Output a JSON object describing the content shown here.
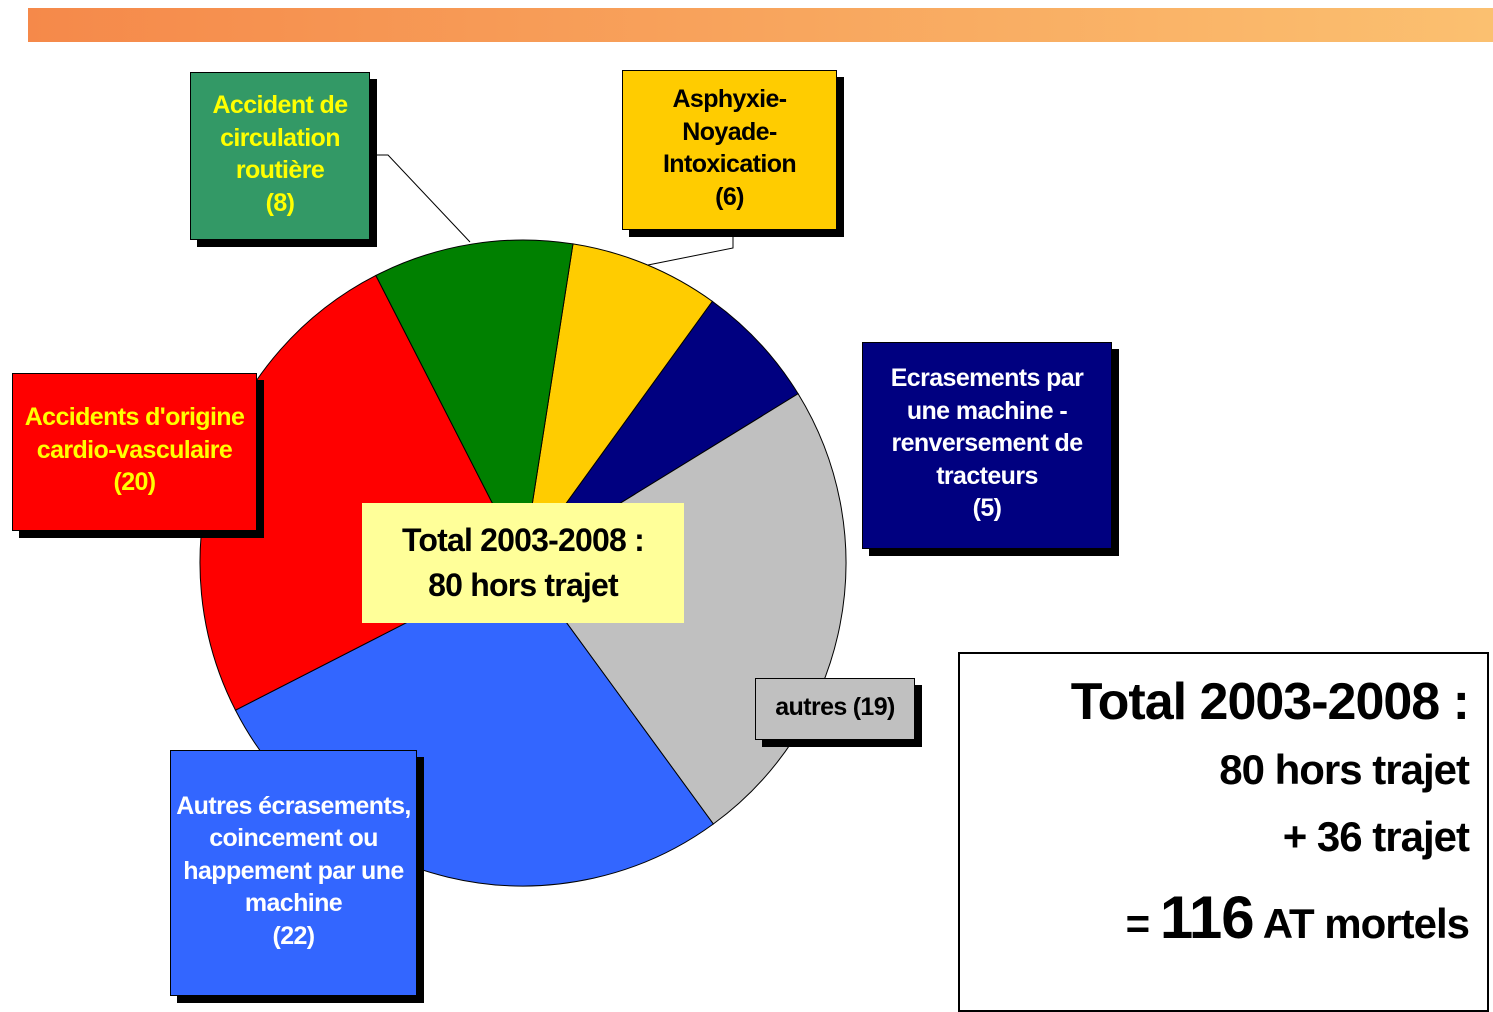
{
  "chart_data": {
    "type": "pie",
    "categories": [
      "Asphyxie-Noyade-Intoxication",
      "Ecrasements par une machine - renversement de tracteurs",
      "autres",
      "Autres écrasements, coincement ou happement par une machine",
      "Accidents d'origine cardio-vasculaire",
      "Accident de circulation routière"
    ],
    "values": [
      6,
      5,
      19,
      22,
      20,
      8
    ],
    "value_labels": [
      "(6)",
      "(5)",
      "(19)",
      "(22)",
      "(20)",
      "(8)"
    ],
    "colors": [
      "#ffcc00",
      "#000080",
      "#c0c0c0",
      "#3366ff",
      "#ff0000",
      "#008000"
    ],
    "center_annotation": "Total 2003-2008 : 80 hors trajet"
  },
  "summary": {
    "title": "Total 2003-2008 :",
    "lines": [
      "80 hors trajet",
      "+ 36 trajet"
    ],
    "total_prefix": "=",
    "total_value": "116",
    "total_suffix": "AT mortels"
  }
}
